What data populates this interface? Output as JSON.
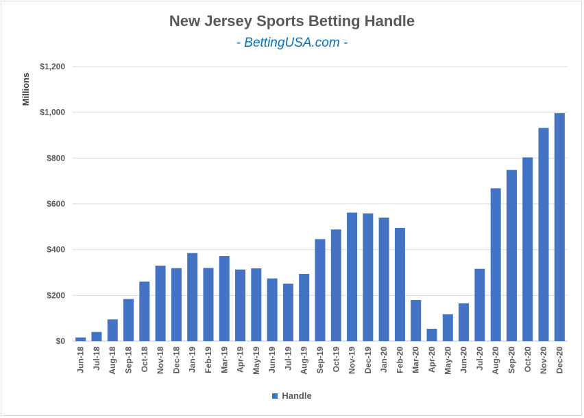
{
  "chart_data": {
    "type": "bar",
    "title": "New Jersey Sports Betting Handle",
    "subtitle": "- BettingUSA.com -",
    "xlabel": "",
    "ylabel": "Millions",
    "ylim": [
      0,
      1200
    ],
    "yticks": [
      0,
      200,
      400,
      600,
      800,
      1000,
      1200
    ],
    "ytick_labels": [
      "$0",
      "$200",
      "$400",
      "$600",
      "$800",
      "$1,000",
      "$1,200"
    ],
    "grid": true,
    "legend_position": "bottom",
    "bar_color": "#4472c4",
    "categories": [
      "Jun-18",
      "Jul-18",
      "Aug-18",
      "Sep-18",
      "Oct-18",
      "Nov-18",
      "Dec-18",
      "Jan-19",
      "Feb-19",
      "Mar-19",
      "Apr-19",
      "May-19",
      "Jun-19",
      "Jul-19",
      "Aug-19",
      "Sep-19",
      "Oct-19",
      "Nov-19",
      "Dec-19",
      "Jan-20",
      "Feb-20",
      "Mar-20",
      "Apr-20",
      "May-20",
      "Jun-20",
      "Jul-20",
      "Aug-20",
      "Sep-20",
      "Oct-20",
      "Nov-20",
      "Dec-20"
    ],
    "series": [
      {
        "name": "Handle",
        "values": [
          16,
          40,
          95,
          184,
          260,
          330,
          319,
          385,
          320,
          372,
          313,
          318,
          274,
          251,
          294,
          446,
          488,
          562,
          558,
          540,
          495,
          180,
          54,
          117,
          165,
          316,
          668,
          748,
          803,
          932,
          996
        ]
      }
    ]
  }
}
